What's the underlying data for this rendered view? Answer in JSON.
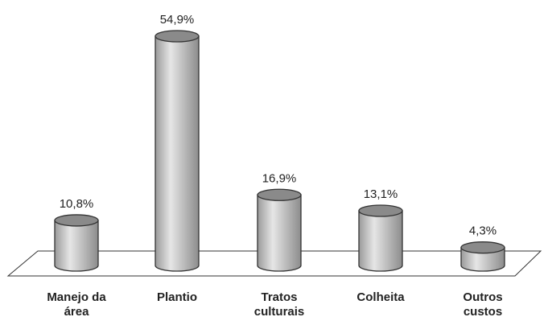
{
  "chart_data": {
    "type": "bar",
    "style": "3d-cylinder",
    "categories": [
      [
        "Manejo da",
        "área"
      ],
      [
        "Plantio"
      ],
      [
        "Tratos",
        "culturais"
      ],
      [
        "Colheita"
      ],
      [
        "Outros",
        "custos"
      ]
    ],
    "values": [
      10.8,
      54.9,
      16.9,
      13.1,
      4.3
    ],
    "value_labels": [
      "10,8%",
      "54,9%",
      "16,9%",
      "13,1%",
      "4,3%"
    ],
    "unit": "%",
    "ylim": [
      0,
      54.9
    ],
    "grid": false,
    "legend": "none",
    "colors": {
      "bar_body": "#c4c4c4",
      "bar_top": "#8a8a8a",
      "outline": "#333333",
      "floor": "#ffffff"
    }
  }
}
